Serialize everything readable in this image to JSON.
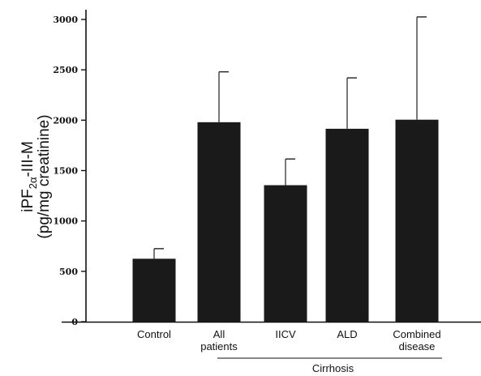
{
  "chart_data": {
    "type": "bar",
    "title": "",
    "ylabel_line1": "iPF",
    "ylabel_sub": "2α",
    "ylabel_suffix": "-III-M",
    "ylabel_line2": "(pg/mg creatinine)",
    "xlabel": "",
    "ylim": [
      0,
      3000
    ],
    "yticks": [
      0,
      500,
      1000,
      1500,
      2000,
      2500,
      3000
    ],
    "grid": false,
    "categories": [
      {
        "lines": [
          "Control"
        ]
      },
      {
        "lines": [
          "All",
          "patients"
        ]
      },
      {
        "lines": [
          "IICV"
        ]
      },
      {
        "lines": [
          "ALD"
        ]
      },
      {
        "lines": [
          "Combined",
          "disease"
        ]
      }
    ],
    "values": [
      625,
      1980,
      1355,
      1915,
      2005
    ],
    "error_upper": [
      100,
      500,
      260,
      505,
      1020
    ],
    "bar_color": "#1a1a1a",
    "group_label": {
      "text": "Cirrhosis",
      "from_category": 1,
      "to_category": 4
    }
  }
}
